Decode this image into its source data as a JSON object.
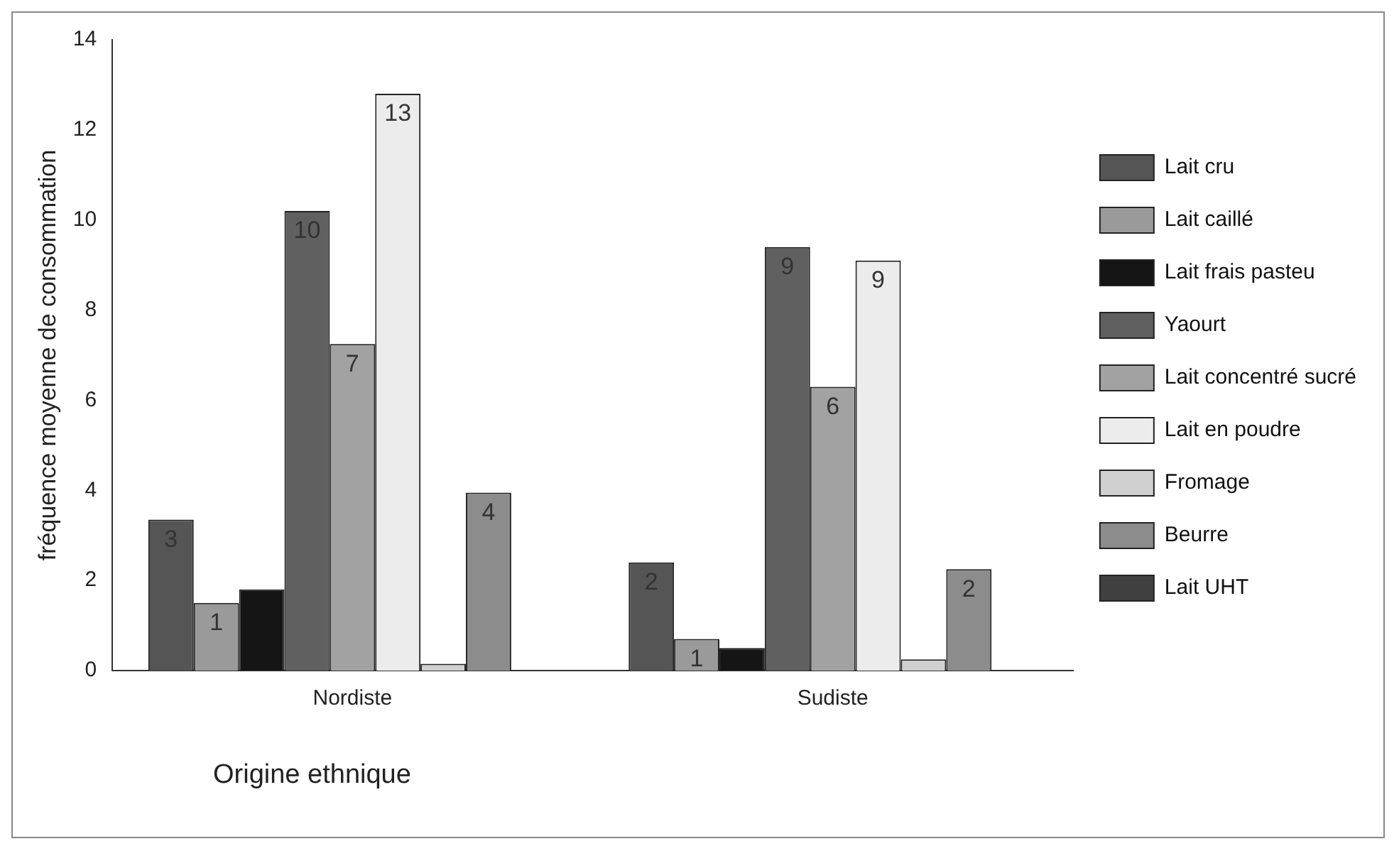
{
  "chart_data": {
    "type": "bar",
    "xlabel": "Origine ethnique",
    "ylabel": "fréquence moyenne de consommation",
    "categories": [
      "Nordiste",
      "Sudiste"
    ],
    "series": [
      {
        "name": "Lait cru",
        "color": "#555555",
        "values": [
          3.35,
          2.4
        ],
        "value_labels": [
          "3",
          "2"
        ]
      },
      {
        "name": "Lait caillé",
        "color": "#9a9a9a",
        "values": [
          1.5,
          0.7
        ],
        "value_labels": [
          "1",
          "1"
        ]
      },
      {
        "name": "Lait frais pasteu",
        "color": "#151515",
        "values": [
          1.8,
          0.5
        ],
        "value_labels": [
          null,
          null
        ]
      },
      {
        "name": "Yaourt",
        "color": "#606060",
        "values": [
          10.2,
          9.4
        ],
        "value_labels": [
          "10",
          "9"
        ]
      },
      {
        "name": "Lait concentré sucré",
        "color": "#a2a2a2",
        "values": [
          7.25,
          6.3
        ],
        "value_labels": [
          "7",
          "6"
        ]
      },
      {
        "name": "Lait en poudre",
        "color": "#ececec",
        "values": [
          12.8,
          9.1
        ],
        "value_labels": [
          "13",
          "9"
        ]
      },
      {
        "name": "Fromage",
        "color": "#d0d0d0",
        "values": [
          0.15,
          0.25
        ],
        "value_labels": [
          null,
          null
        ]
      },
      {
        "name": "Beurre",
        "color": "#8c8c8c",
        "values": [
          3.95,
          2.25
        ],
        "value_labels": [
          "4",
          "2"
        ]
      },
      {
        "name": "Lait UHT",
        "color": "#404040",
        "values": [
          null,
          null
        ],
        "value_labels": [
          null,
          null
        ]
      }
    ],
    "ylim": [
      0,
      14
    ],
    "yticks": [
      0,
      2,
      4,
      6,
      8,
      10,
      12,
      14
    ],
    "grid": false,
    "legend": "right"
  }
}
